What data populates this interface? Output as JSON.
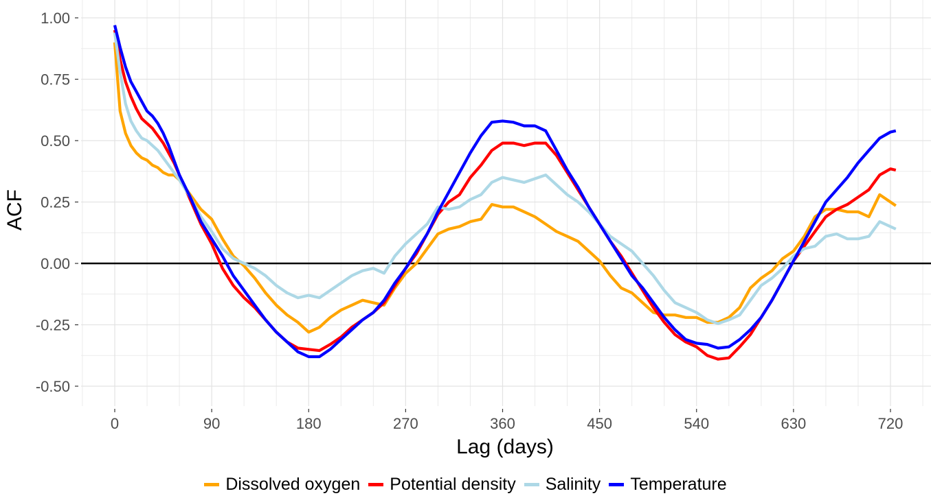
{
  "chart_data": {
    "type": "line",
    "title": "",
    "xlabel": "Lag (days)",
    "ylabel": "ACF",
    "xlim": [
      -30,
      755
    ],
    "ylim": [
      -0.58,
      1.03
    ],
    "xticks": [
      0,
      90,
      180,
      270,
      360,
      450,
      540,
      630,
      720
    ],
    "xtick_labels": [
      "0",
      "90",
      "180",
      "270",
      "360",
      "450",
      "540",
      "630",
      "720"
    ],
    "yticks": [
      1.0,
      0.75,
      0.5,
      0.25,
      0.0,
      -0.25,
      -0.5
    ],
    "ytick_labels": [
      "1.00",
      "0.75",
      "0.50",
      "0.25",
      "0.00",
      "-0.25",
      "-0.50"
    ],
    "grid": true,
    "reference_line": {
      "y": 0,
      "color": "#000000"
    },
    "legend_position": "bottom",
    "x": [
      0,
      5,
      10,
      15,
      20,
      25,
      30,
      35,
      40,
      45,
      50,
      55,
      60,
      70,
      80,
      90,
      100,
      110,
      120,
      130,
      140,
      150,
      160,
      170,
      180,
      190,
      200,
      210,
      220,
      230,
      240,
      250,
      260,
      270,
      280,
      290,
      300,
      310,
      320,
      330,
      340,
      350,
      360,
      370,
      380,
      390,
      400,
      410,
      420,
      430,
      440,
      450,
      460,
      470,
      480,
      490,
      500,
      510,
      520,
      530,
      540,
      550,
      560,
      570,
      580,
      590,
      600,
      610,
      620,
      630,
      640,
      650,
      660,
      670,
      680,
      690,
      700,
      710,
      720,
      725
    ],
    "series": [
      {
        "name": "Dissolved oxygen",
        "color": "#FFA500",
        "values": [
          0.9,
          0.62,
          0.53,
          0.48,
          0.45,
          0.43,
          0.42,
          0.4,
          0.39,
          0.37,
          0.36,
          0.36,
          0.34,
          0.28,
          0.22,
          0.18,
          0.1,
          0.03,
          -0.01,
          -0.06,
          -0.12,
          -0.17,
          -0.21,
          -0.24,
          -0.28,
          -0.26,
          -0.22,
          -0.19,
          -0.17,
          -0.15,
          -0.16,
          -0.17,
          -0.1,
          -0.04,
          0.0,
          0.06,
          0.12,
          0.14,
          0.15,
          0.17,
          0.18,
          0.24,
          0.23,
          0.23,
          0.21,
          0.19,
          0.16,
          0.13,
          0.11,
          0.09,
          0.05,
          0.01,
          -0.05,
          -0.1,
          -0.12,
          -0.16,
          -0.2,
          -0.21,
          -0.21,
          -0.22,
          -0.22,
          -0.24,
          -0.24,
          -0.22,
          -0.18,
          -0.1,
          -0.06,
          -0.03,
          0.02,
          0.05,
          0.11,
          0.19,
          0.22,
          0.22,
          0.21,
          0.21,
          0.19,
          0.28,
          0.25,
          0.235
        ]
      },
      {
        "name": "Potential density",
        "color": "#FF0000",
        "values": [
          0.95,
          0.83,
          0.74,
          0.68,
          0.63,
          0.59,
          0.57,
          0.55,
          0.52,
          0.49,
          0.45,
          0.41,
          0.36,
          0.26,
          0.16,
          0.08,
          -0.02,
          -0.09,
          -0.14,
          -0.18,
          -0.23,
          -0.28,
          -0.32,
          -0.345,
          -0.35,
          -0.355,
          -0.33,
          -0.3,
          -0.26,
          -0.23,
          -0.2,
          -0.16,
          -0.09,
          -0.02,
          0.04,
          0.12,
          0.2,
          0.25,
          0.28,
          0.35,
          0.4,
          0.46,
          0.49,
          0.49,
          0.48,
          0.49,
          0.49,
          0.44,
          0.37,
          0.3,
          0.23,
          0.16,
          0.09,
          0.03,
          -0.04,
          -0.11,
          -0.18,
          -0.24,
          -0.29,
          -0.32,
          -0.34,
          -0.375,
          -0.39,
          -0.385,
          -0.34,
          -0.29,
          -0.22,
          -0.15,
          -0.07,
          0.01,
          0.07,
          0.13,
          0.19,
          0.22,
          0.24,
          0.27,
          0.3,
          0.36,
          0.385,
          0.38
        ]
      },
      {
        "name": "Salinity",
        "color": "#ADD8E6",
        "values": [
          0.94,
          0.78,
          0.65,
          0.58,
          0.54,
          0.51,
          0.5,
          0.48,
          0.46,
          0.43,
          0.4,
          0.37,
          0.34,
          0.27,
          0.19,
          0.13,
          0.06,
          0.02,
          0.0,
          -0.02,
          -0.05,
          -0.09,
          -0.12,
          -0.14,
          -0.13,
          -0.14,
          -0.11,
          -0.08,
          -0.05,
          -0.03,
          -0.02,
          -0.04,
          0.03,
          0.08,
          0.12,
          0.16,
          0.23,
          0.22,
          0.23,
          0.26,
          0.28,
          0.33,
          0.35,
          0.34,
          0.33,
          0.345,
          0.36,
          0.32,
          0.28,
          0.25,
          0.21,
          0.16,
          0.11,
          0.08,
          0.05,
          0.0,
          -0.05,
          -0.11,
          -0.16,
          -0.18,
          -0.2,
          -0.23,
          -0.245,
          -0.23,
          -0.21,
          -0.15,
          -0.09,
          -0.06,
          -0.02,
          0.03,
          0.06,
          0.07,
          0.11,
          0.12,
          0.1,
          0.1,
          0.11,
          0.17,
          0.15,
          0.14
        ]
      },
      {
        "name": "Temperature",
        "color": "#0000FF",
        "values": [
          0.97,
          0.88,
          0.8,
          0.74,
          0.7,
          0.66,
          0.62,
          0.6,
          0.57,
          0.53,
          0.48,
          0.42,
          0.36,
          0.27,
          0.17,
          0.1,
          0.03,
          -0.05,
          -0.11,
          -0.17,
          -0.23,
          -0.28,
          -0.32,
          -0.36,
          -0.38,
          -0.38,
          -0.35,
          -0.31,
          -0.27,
          -0.23,
          -0.2,
          -0.15,
          -0.08,
          -0.02,
          0.05,
          0.12,
          0.21,
          0.29,
          0.37,
          0.45,
          0.52,
          0.575,
          0.58,
          0.575,
          0.56,
          0.56,
          0.54,
          0.46,
          0.38,
          0.31,
          0.23,
          0.16,
          0.09,
          0.02,
          -0.05,
          -0.1,
          -0.16,
          -0.22,
          -0.27,
          -0.31,
          -0.325,
          -0.33,
          -0.345,
          -0.34,
          -0.31,
          -0.27,
          -0.22,
          -0.15,
          -0.07,
          0.01,
          0.09,
          0.17,
          0.25,
          0.3,
          0.35,
          0.41,
          0.46,
          0.51,
          0.535,
          0.54
        ]
      }
    ]
  }
}
